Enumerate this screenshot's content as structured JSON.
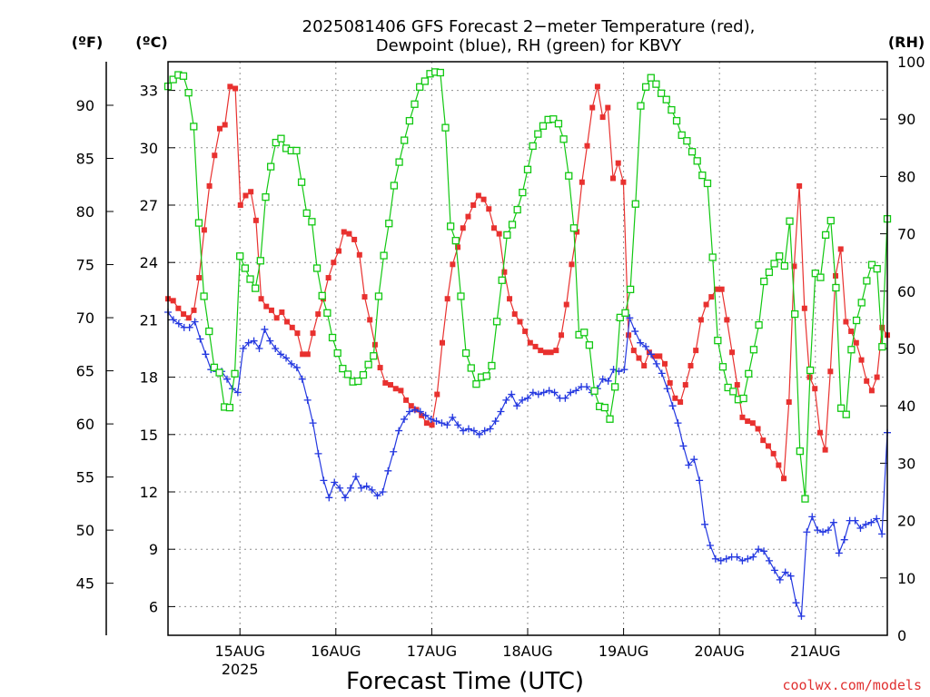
{
  "chart_data": {
    "type": "line",
    "title_line1": "2025081406 GFS Forecast 2−meter Temperature (red),",
    "title_line2": "Dewpoint (blue), RH (green) for KBVY",
    "units": {
      "f": "(ºF)",
      "c": "(ºC)",
      "rh": "(RH)"
    },
    "xlabel": "Forecast Time (UTC)",
    "watermark": "coolwx.com/models",
    "x_start_day": 14.25,
    "x_range_days": [
      14.25,
      21.75
    ],
    "x_ticks": [
      {
        "day": 15,
        "label": "15AUG",
        "sub": "2025"
      },
      {
        "day": 16,
        "label": "16AUG",
        "sub": ""
      },
      {
        "day": 17,
        "label": "17AUG",
        "sub": ""
      },
      {
        "day": 18,
        "label": "18AUG",
        "sub": ""
      },
      {
        "day": 19,
        "label": "19AUG",
        "sub": ""
      },
      {
        "day": 20,
        "label": "20AUG",
        "sub": ""
      },
      {
        "day": 21,
        "label": "21AUG",
        "sub": ""
      }
    ],
    "ylim_c": [
      4.5,
      34.5
    ],
    "ylim_rh": [
      0,
      100
    ],
    "c_ticks": [
      6,
      9,
      12,
      15,
      18,
      21,
      24,
      27,
      30,
      33
    ],
    "f_ticks": [
      45,
      50,
      55,
      60,
      65,
      70,
      75,
      80,
      85,
      90
    ],
    "rh_ticks": [
      0,
      10,
      20,
      30,
      40,
      50,
      60,
      70,
      80,
      90,
      100
    ],
    "grid": true,
    "colors": {
      "temp": "#e8312f",
      "dew": "#2438e0",
      "rh": "#12c812"
    },
    "series": [
      {
        "name": "Temperature",
        "units": "C",
        "color": "#e8312f",
        "marker": "filled-square",
        "values": [
          22.1,
          22.0,
          21.6,
          21.3,
          21.1,
          21.5,
          23.2,
          25.7,
          28.0,
          29.6,
          31.0,
          31.2,
          33.2,
          33.1,
          27.0,
          27.5,
          27.7,
          26.2,
          22.1,
          21.7,
          21.5,
          21.1,
          21.4,
          20.9,
          20.6,
          20.3,
          19.2,
          19.2,
          20.3,
          21.3,
          22.1,
          23.2,
          24.0,
          24.6,
          25.6,
          25.5,
          25.2,
          24.4,
          22.2,
          21.0,
          19.7,
          18.5,
          17.7,
          17.6,
          17.4,
          17.3,
          16.8,
          16.5,
          16.3,
          16.0,
          15.6,
          15.5,
          17.1,
          19.8,
          22.1,
          23.9,
          24.8,
          25.8,
          26.4,
          27.0,
          27.5,
          27.3,
          26.8,
          25.8,
          25.5,
          23.5,
          22.1,
          21.3,
          20.9,
          20.4,
          19.8,
          19.6,
          19.4,
          19.3,
          19.3,
          19.4,
          20.2,
          21.8,
          23.9,
          25.6,
          28.2,
          30.1,
          32.1,
          33.2,
          31.6,
          32.1,
          28.4,
          29.2,
          28.2,
          20.2,
          19.4,
          19.0,
          18.6,
          19.3,
          19.1,
          19.1,
          18.7,
          17.7,
          16.9,
          16.7,
          17.6,
          18.6,
          19.4,
          21.0,
          21.8,
          22.2,
          22.6,
          22.6,
          21.0,
          19.3,
          17.6,
          15.9,
          15.7,
          15.6,
          15.3,
          14.7,
          14.4,
          14.0,
          13.4,
          12.7,
          16.7,
          23.8,
          28.0,
          21.6,
          18.0,
          17.4,
          15.1,
          14.2,
          18.3,
          23.3,
          24.7,
          20.9,
          20.4,
          19.8,
          18.9,
          17.8,
          17.3,
          18.0,
          20.6,
          20.2
        ]
      },
      {
        "name": "Dewpoint",
        "units": "C",
        "color": "#2438e0",
        "marker": "plus",
        "values": [
          21.4,
          21.0,
          20.8,
          20.6,
          20.6,
          20.9,
          20.0,
          19.2,
          18.4,
          18.3,
          18.3,
          17.9,
          17.4,
          17.2,
          19.5,
          19.8,
          19.9,
          19.5,
          20.5,
          19.9,
          19.5,
          19.2,
          19.0,
          18.7,
          18.5,
          17.9,
          16.8,
          15.6,
          14.0,
          12.6,
          11.7,
          12.5,
          12.2,
          11.7,
          12.2,
          12.8,
          12.2,
          12.3,
          12.1,
          11.8,
          12.0,
          13.1,
          14.1,
          15.2,
          15.8,
          16.2,
          16.3,
          16.2,
          16.0,
          15.8,
          15.7,
          15.6,
          15.5,
          15.9,
          15.5,
          15.2,
          15.3,
          15.2,
          15.0,
          15.2,
          15.3,
          15.7,
          16.2,
          16.8,
          17.1,
          16.5,
          16.8,
          16.9,
          17.2,
          17.1,
          17.2,
          17.3,
          17.2,
          16.9,
          16.9,
          17.2,
          17.3,
          17.5,
          17.5,
          17.2,
          17.4,
          17.9,
          17.8,
          18.4,
          18.3,
          18.4,
          21.1,
          20.4,
          19.8,
          19.6,
          19.2,
          18.7,
          18.2,
          17.4,
          16.5,
          15.6,
          14.4,
          13.4,
          13.7,
          12.6,
          10.3,
          9.2,
          8.5,
          8.4,
          8.5,
          8.6,
          8.6,
          8.4,
          8.5,
          8.6,
          9.0,
          8.9,
          8.4,
          7.9,
          7.4,
          7.8,
          7.6,
          6.2,
          5.5,
          9.9,
          10.7,
          10.0,
          9.9,
          10.0,
          10.4,
          8.8,
          9.5,
          10.5,
          10.5,
          10.1,
          10.3,
          10.4,
          10.6,
          9.8,
          15.1
        ]
      },
      {
        "name": "Relative Humidity",
        "units": "%",
        "color": "#12c812",
        "marker": "open-square",
        "values": [
          95.7,
          96.9,
          97.7,
          97.5,
          94.6,
          88.7,
          71.9,
          59.1,
          53.0,
          46.7,
          45.8,
          39.8,
          39.7,
          45.6,
          66.1,
          64.0,
          62.1,
          60.5,
          65.3,
          76.4,
          81.7,
          85.9,
          86.6,
          84.9,
          84.5,
          84.5,
          79.0,
          73.6,
          72.1,
          64.0,
          59.2,
          56.2,
          51.9,
          49.2,
          46.5,
          45.5,
          44.2,
          44.3,
          45.4,
          47.2,
          48.7,
          59.1,
          66.2,
          71.8,
          78.4,
          82.5,
          86.3,
          89.7,
          92.6,
          95.6,
          96.6,
          97.9,
          98.2,
          98.1,
          88.5,
          71.3,
          68.8,
          59.1,
          49.2,
          46.6,
          43.8,
          45.0,
          45.2,
          47.0,
          54.7,
          61.9,
          69.8,
          71.6,
          74.2,
          77.2,
          81.2,
          85.3,
          87.4,
          88.8,
          89.9,
          90.0,
          89.2,
          86.5,
          80.1,
          71.0,
          52.4,
          52.8,
          50.6,
          42.6,
          39.9,
          39.7,
          37.7,
          43.3,
          55.4,
          56.2,
          60.3,
          75.2,
          92.3,
          95.6,
          97.2,
          96.1,
          94.5,
          93.4,
          91.6,
          89.7,
          87.2,
          86.2,
          84.3,
          82.7,
          80.2,
          78.8,
          65.9,
          51.4,
          46.8,
          43.2,
          42.5,
          41.1,
          41.3,
          45.6,
          49.8,
          54.1,
          61.7,
          63.3,
          64.8,
          66.1,
          64.4,
          72.2,
          56.0,
          32.1,
          23.8,
          46.2,
          63.1,
          62.4,
          69.8,
          72.3,
          60.6,
          39.6,
          38.5,
          49.8,
          54.9,
          58.0,
          61.8,
          64.6,
          63.9,
          50.3,
          72.6
        ]
      }
    ]
  }
}
